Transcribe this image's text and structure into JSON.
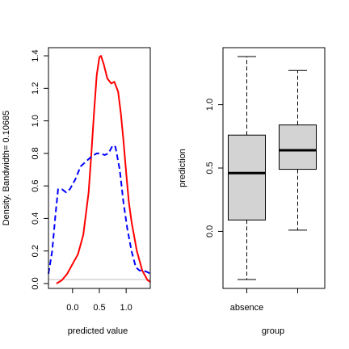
{
  "chart_data": [
    {
      "type": "line",
      "xlabel": "predicted value",
      "ylabel": "Density. Bandwidth= 0.10685",
      "xlim": [
        -0.45,
        1.45
      ],
      "ylim": [
        -0.03,
        1.45
      ],
      "x_ticks": [
        0.0,
        0.5,
        1.0
      ],
      "x_tick_labels": [
        "0.0",
        "0.5",
        "1.0"
      ],
      "y_ticks": [
        0.0,
        0.2,
        0.4,
        0.6,
        0.8,
        1.0,
        1.2,
        1.4
      ],
      "y_tick_labels": [
        "0.0",
        "0.2",
        "0.4",
        "0.6",
        "0.8",
        "1.0",
        "1.2",
        "1.4"
      ],
      "baseline": 0,
      "series": [
        {
          "color": "#ff0000",
          "line_style": "solid",
          "points": [
            [
              -0.3,
              0.0
            ],
            [
              -0.2,
              0.02
            ],
            [
              -0.1,
              0.06
            ],
            [
              0.0,
              0.12
            ],
            [
              0.1,
              0.18
            ],
            [
              0.2,
              0.3
            ],
            [
              0.3,
              0.56
            ],
            [
              0.35,
              0.8
            ],
            [
              0.4,
              1.05
            ],
            [
              0.45,
              1.28
            ],
            [
              0.5,
              1.39
            ],
            [
              0.53,
              1.4
            ],
            [
              0.58,
              1.35
            ],
            [
              0.65,
              1.26
            ],
            [
              0.72,
              1.23
            ],
            [
              0.78,
              1.24
            ],
            [
              0.85,
              1.18
            ],
            [
              0.9,
              1.05
            ],
            [
              0.95,
              0.88
            ],
            [
              1.0,
              0.68
            ],
            [
              1.05,
              0.5
            ],
            [
              1.1,
              0.38
            ],
            [
              1.2,
              0.2
            ],
            [
              1.3,
              0.08
            ],
            [
              1.4,
              0.02
            ],
            [
              1.45,
              0.01
            ]
          ]
        },
        {
          "color": "#0000ff",
          "line_style": "dashed",
          "points": [
            [
              -0.45,
              0.06
            ],
            [
              -0.38,
              0.2
            ],
            [
              -0.32,
              0.42
            ],
            [
              -0.27,
              0.58
            ],
            [
              -0.2,
              0.58
            ],
            [
              -0.12,
              0.56
            ],
            [
              -0.05,
              0.58
            ],
            [
              0.05,
              0.64
            ],
            [
              0.15,
              0.72
            ],
            [
              0.25,
              0.75
            ],
            [
              0.35,
              0.78
            ],
            [
              0.45,
              0.8
            ],
            [
              0.52,
              0.8
            ],
            [
              0.6,
              0.79
            ],
            [
              0.67,
              0.8
            ],
            [
              0.75,
              0.85
            ],
            [
              0.8,
              0.84
            ],
            [
              0.88,
              0.7
            ],
            [
              0.95,
              0.5
            ],
            [
              1.02,
              0.34
            ],
            [
              1.1,
              0.2
            ],
            [
              1.18,
              0.1
            ],
            [
              1.25,
              0.08
            ],
            [
              1.32,
              0.08
            ],
            [
              1.4,
              0.07
            ],
            [
              1.45,
              0.06
            ]
          ]
        }
      ]
    },
    {
      "type": "boxplot",
      "xlabel": "group",
      "ylabel": "prediction",
      "ylim": [
        -0.45,
        1.45
      ],
      "y_ticks": [
        0.0,
        0.5,
        1.0
      ],
      "y_tick_labels": [
        "0.0",
        "0.5",
        "1.0"
      ],
      "x_tick_labels": [
        "absence",
        ""
      ],
      "box_color": "#d3d3d3",
      "boxes": [
        {
          "whisker_low": -0.38,
          "q1": 0.09,
          "median": 0.46,
          "q3": 0.76,
          "whisker_high": 1.38
        },
        {
          "whisker_low": 0.01,
          "q1": 0.49,
          "median": 0.64,
          "q3": 0.84,
          "whisker_high": 1.27
        }
      ]
    }
  ]
}
